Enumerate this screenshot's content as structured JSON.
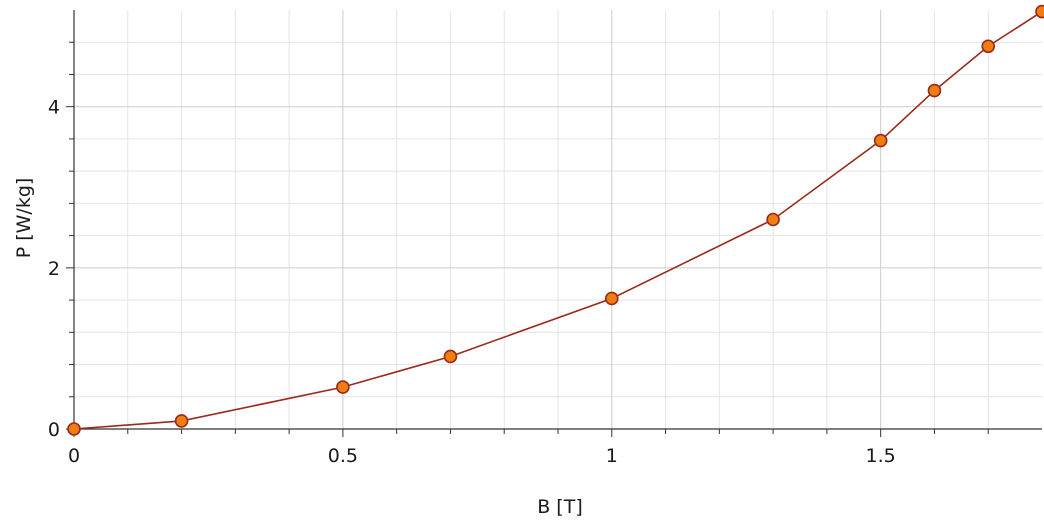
{
  "chart_data": {
    "type": "line",
    "title": "",
    "xlabel": "B [T]",
    "ylabel": "P [W/kg]",
    "xlim": [
      0,
      1.8
    ],
    "ylim": [
      0,
      5.2
    ],
    "x_ticks": [
      {
        "value": 0,
        "label": "0"
      },
      {
        "value": 0.5,
        "label": "0.5"
      },
      {
        "value": 1,
        "label": "1"
      },
      {
        "value": 1.5,
        "label": "1.5"
      }
    ],
    "y_ticks": [
      {
        "value": 0,
        "label": "0"
      },
      {
        "value": 2,
        "label": "2"
      },
      {
        "value": 4,
        "label": "4"
      }
    ],
    "x_minor_step": 0.1,
    "y_minor_step": 0.4,
    "grid": true,
    "legend": "none",
    "series": [
      {
        "x": [
          0,
          0.2,
          0.5,
          0.7,
          1.0,
          1.3,
          1.5,
          1.6,
          1.7,
          1.8
        ],
        "values": [
          0,
          0.1,
          0.52,
          0.9,
          1.62,
          2.6,
          3.58,
          4.2,
          4.75,
          5.18
        ],
        "line_color": "#9b2a1a",
        "marker_fill": "#f07d12",
        "marker_stroke": "#9b2a1a"
      }
    ],
    "colors": {
      "grid_major": "#cccccc",
      "grid_minor": "#e4e4e4",
      "axis": "#333333"
    }
  }
}
